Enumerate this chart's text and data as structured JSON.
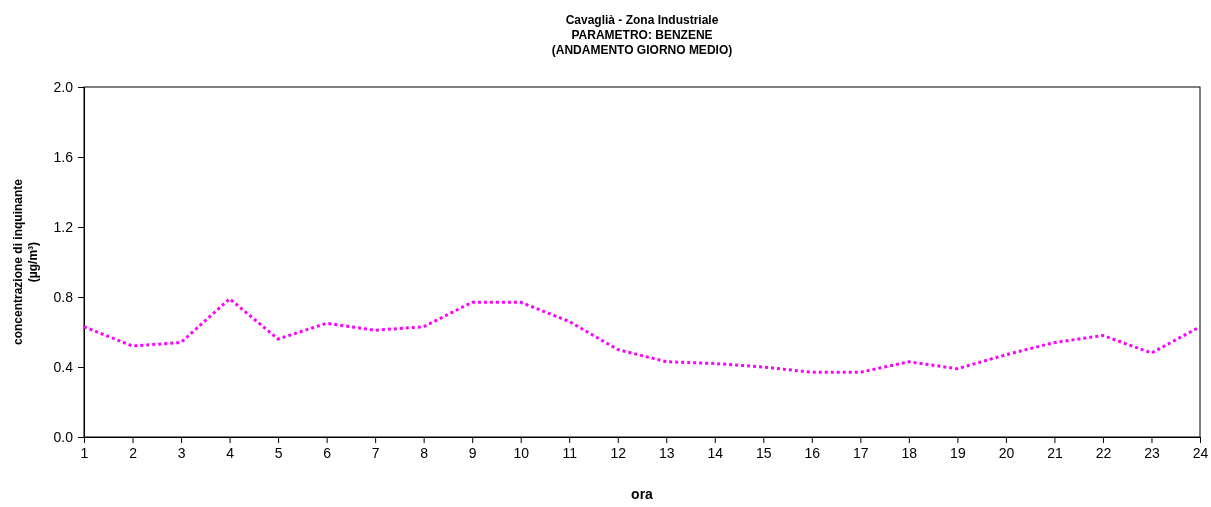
{
  "chart_data": {
    "type": "line",
    "title": "Cavaglià - Zona Industriale\nPARAMETRO: BENZENE\n(ANDAMENTO GIORNO MEDIO)",
    "xlabel": "ora",
    "ylabel": "concentrazione di inquinante\n(µg/m³)",
    "x": [
      1,
      2,
      3,
      4,
      5,
      6,
      7,
      8,
      9,
      10,
      11,
      12,
      13,
      14,
      15,
      16,
      17,
      18,
      19,
      20,
      21,
      22,
      23,
      24
    ],
    "series": [
      {
        "color": "#ff00ff",
        "values": [
          0.63,
          0.52,
          0.54,
          0.79,
          0.56,
          0.65,
          0.61,
          0.63,
          0.77,
          0.77,
          0.66,
          0.5,
          0.43,
          0.42,
          0.4,
          0.37,
          0.37,
          0.43,
          0.39,
          0.47,
          0.54,
          0.58,
          0.48,
          0.63
        ]
      }
    ],
    "xlim": [
      1,
      24
    ],
    "xticks": [
      1,
      2,
      3,
      4,
      5,
      6,
      7,
      8,
      9,
      10,
      11,
      12,
      13,
      14,
      15,
      16,
      17,
      18,
      19,
      20,
      21,
      22,
      23,
      24
    ],
    "ylim": [
      0,
      2
    ],
    "yticks": [
      {
        "value": 0,
        "label": "0.0"
      },
      {
        "value": 0.4,
        "label": "0.4"
      },
      {
        "value": 0.8,
        "label": "0.8"
      },
      {
        "value": 1.2,
        "label": "1.2"
      },
      {
        "value": 1.6,
        "label": "1.6"
      },
      {
        "value": 2,
        "label": "2.0"
      }
    ],
    "grid": false,
    "marker": "none",
    "line_style": "dotted"
  }
}
